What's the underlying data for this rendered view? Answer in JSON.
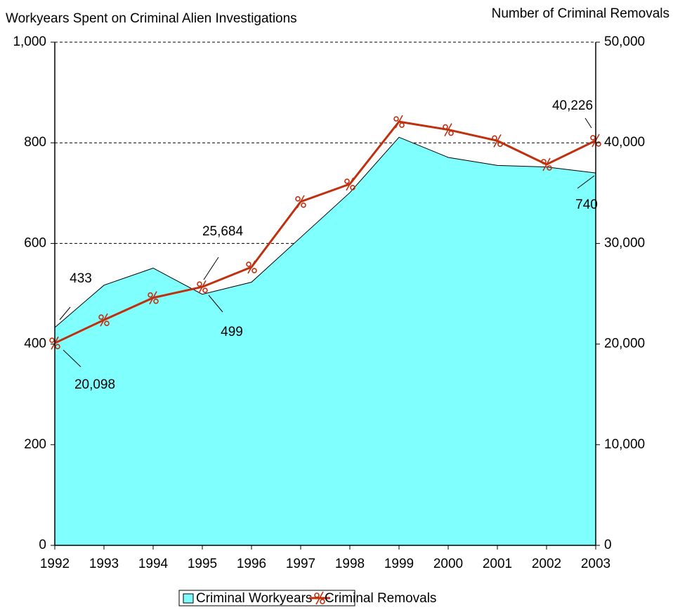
{
  "chart_data": {
    "type": "area_line",
    "y_title": "Workyears Spent on Criminal Alien Investigations",
    "y2_title": "Number of Criminal Removals",
    "categories": [
      "1992",
      "1993",
      "1994",
      "1995",
      "1996",
      "1997",
      "1998",
      "1999",
      "2000",
      "2001",
      "2002",
      "2003"
    ],
    "series": [
      {
        "name": "Criminal Workyears",
        "type": "area",
        "color": "#80ffff",
        "values": [
          433,
          517,
          551,
          499,
          523,
          612,
          701,
          811,
          771,
          755,
          752,
          740
        ],
        "value_labels": [
          "433",
          null,
          null,
          "499",
          null,
          null,
          null,
          null,
          null,
          null,
          null,
          "740"
        ]
      },
      {
        "name": "Criminal Removals",
        "type": "line",
        "axis": "y2",
        "color": "#c0300f",
        "values": [
          20098,
          22400,
          24600,
          25684,
          27650,
          34150,
          35900,
          42100,
          41300,
          40200,
          37850,
          40226
        ],
        "value_labels": [
          "20,098",
          null,
          null,
          "25,684",
          null,
          null,
          null,
          null,
          null,
          null,
          null,
          "40,226"
        ]
      }
    ],
    "ylim": [
      0,
      1000
    ],
    "yticks": [
      0,
      200,
      400,
      600,
      800,
      {
        "value": 1000,
        "label": "1,000"
      }
    ],
    "y2lim": [
      0,
      50000
    ],
    "y2ticks": [
      0,
      {
        "value": 10000,
        "label": "10,000"
      },
      {
        "value": 20000,
        "label": "20,000"
      },
      {
        "value": 30000,
        "label": "30,000"
      },
      {
        "value": 40000,
        "label": "40,000"
      },
      {
        "value": 50000,
        "label": "50,000"
      }
    ],
    "grid": true
  }
}
